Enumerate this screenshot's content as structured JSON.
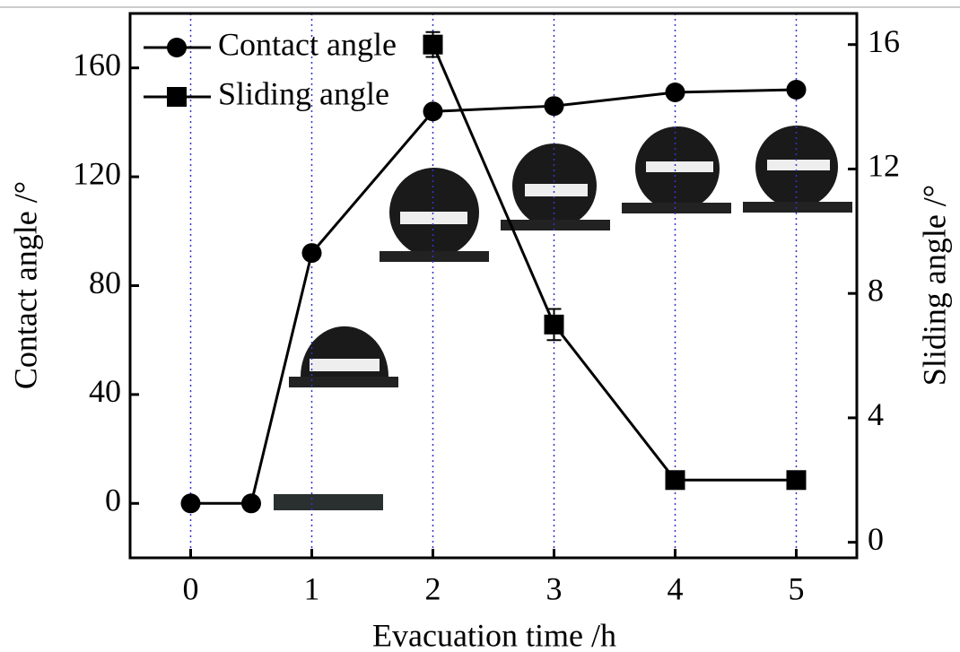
{
  "chart_data": {
    "type": "line",
    "xlabel": "Evacuation time /h",
    "ylabel": "Contact angle /°",
    "y2label": "Sliding angle /°",
    "xlim": [
      -0.5,
      5.5
    ],
    "xticks": [
      0,
      1,
      2,
      3,
      4,
      5
    ],
    "ylim": [
      -20,
      180
    ],
    "yticks": [
      0,
      40,
      80,
      120,
      160
    ],
    "y2lim": [
      -0.5,
      17
    ],
    "y2ticks": [
      0,
      4,
      8,
      12,
      16
    ],
    "grid": true,
    "grid_color": "#3333cc",
    "legend": "upper left",
    "series": [
      {
        "name": "Contact angle",
        "color": "#000000",
        "marker": "circle",
        "x": [
          0,
          0.5,
          1,
          2,
          3,
          4,
          5
        ],
        "values": [
          0,
          0,
          92,
          144,
          146,
          151,
          152
        ]
      },
      {
        "name": "Sliding angle",
        "color": "#000000",
        "marker": "square",
        "axis": "y2",
        "x": [
          2,
          3,
          4,
          5
        ],
        "values": [
          16,
          7,
          2,
          2
        ],
        "errors": [
          0.4,
          0.5,
          0,
          0
        ]
      }
    ]
  }
}
